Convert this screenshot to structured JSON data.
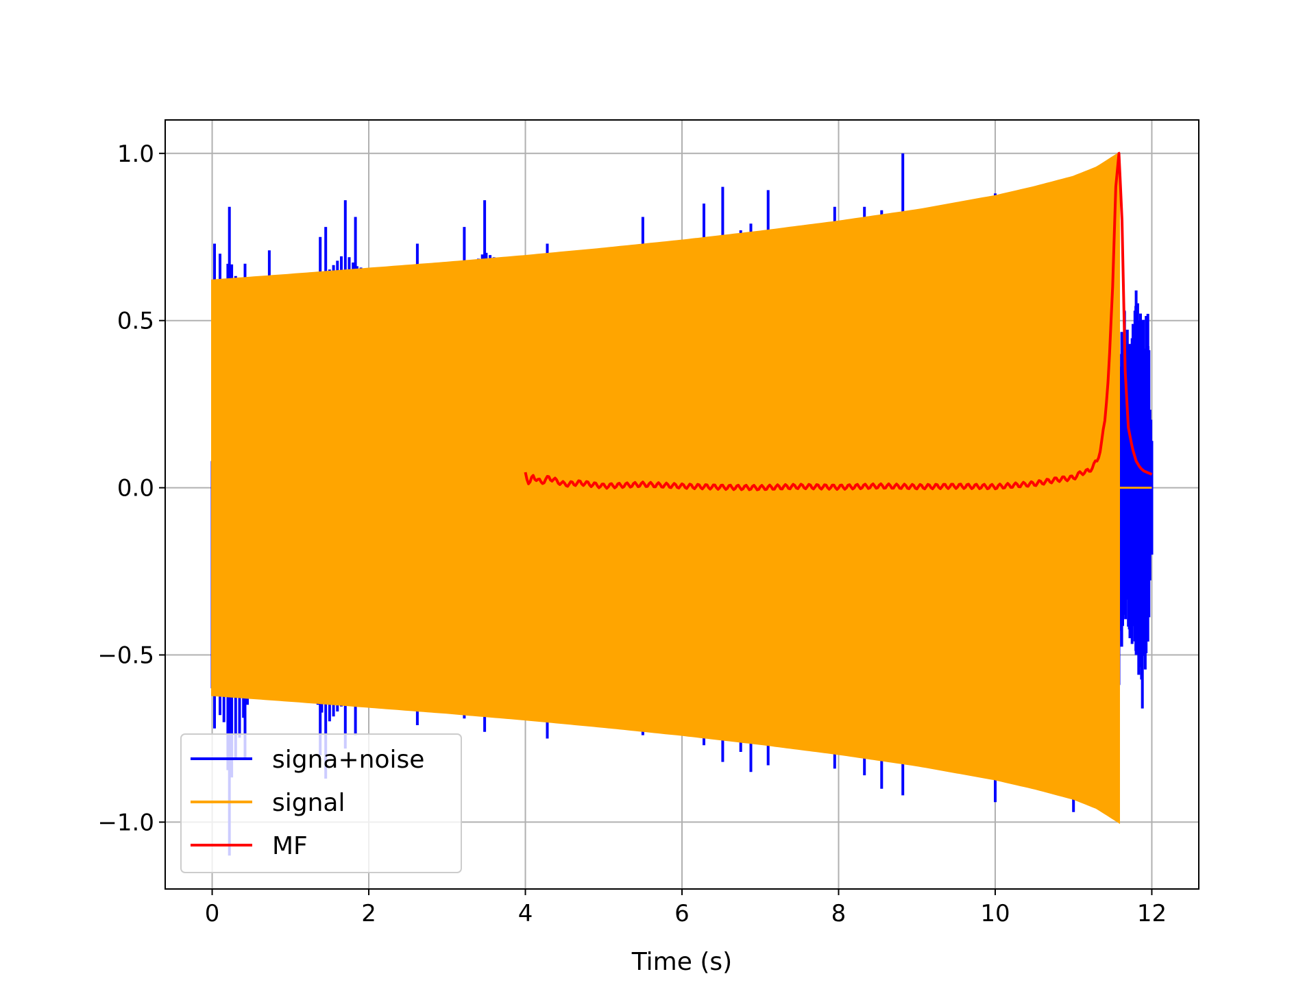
{
  "chart_data": {
    "type": "line",
    "title": "",
    "xlabel": "Time (s)",
    "ylabel": "",
    "xlim": [
      -0.6,
      12.6
    ],
    "ylim": [
      -1.2,
      1.1
    ],
    "xticks": [
      0,
      2,
      4,
      6,
      8,
      10,
      12
    ],
    "xtick_labels": [
      "0",
      "2",
      "4",
      "6",
      "8",
      "10",
      "12"
    ],
    "yticks": [
      -1.0,
      -0.5,
      0.0,
      0.5,
      1.0
    ],
    "ytick_labels": [
      "−1.0",
      "−0.5",
      "0.0",
      "0.5",
      "1.0"
    ],
    "grid": true,
    "legend_position": "lower-left",
    "series": [
      {
        "name": "signa+noise",
        "color": "#0000ff",
        "description_points": {
          "x": [
            0.0,
            0.03,
            0.1,
            0.22,
            0.42,
            0.73,
            1.38,
            1.45,
            1.7,
            1.83,
            2.62,
            3.22,
            3.48,
            4.28,
            4.8,
            5.5,
            6.28,
            6.52,
            6.75,
            6.88,
            7.1,
            7.95,
            8.33,
            8.55,
            8.82,
            10.0,
            11.0,
            11.58,
            11.65,
            11.72,
            11.8,
            11.88,
            11.95,
            12.0
          ],
          "y": [
            0.08,
            0.73,
            0.7,
            0.84,
            0.67,
            0.71,
            0.75,
            0.78,
            0.86,
            0.81,
            0.73,
            0.78,
            0.86,
            0.73,
            0.71,
            0.81,
            0.85,
            0.9,
            0.77,
            0.79,
            0.89,
            0.84,
            0.84,
            0.83,
            1.0,
            0.88,
            0.93,
            0.4,
            0.53,
            0.43,
            0.59,
            0.5,
            0.52,
            0.14
          ],
          "y_min": [
            -0.6,
            -0.72,
            -0.68,
            -1.1,
            -0.81,
            -0.62,
            -0.8,
            -0.87,
            -0.78,
            -0.74,
            -0.71,
            -0.69,
            -0.73,
            -0.75,
            -0.68,
            -0.74,
            -0.77,
            -0.82,
            -0.79,
            -0.85,
            -0.83,
            -0.84,
            -0.86,
            -0.9,
            -0.92,
            -0.94,
            -0.97,
            -0.59,
            -0.38,
            -0.45,
            -0.5,
            -0.66,
            -0.46,
            -0.2
          ]
        }
      },
      {
        "name": "signal",
        "color": "#ffa500",
        "envelope": {
          "t": [
            0.0,
            1.0,
            2.0,
            3.0,
            4.0,
            5.0,
            6.0,
            7.0,
            8.0,
            9.0,
            10.0,
            10.5,
            11.0,
            11.3,
            11.58
          ],
          "amp": [
            0.62,
            0.637,
            0.655,
            0.673,
            0.693,
            0.715,
            0.739,
            0.766,
            0.796,
            0.83,
            0.872,
            0.899,
            0.93,
            0.958,
            1.0
          ]
        },
        "end_time": 11.58,
        "after_value": 0.0,
        "after_end": 12.0
      },
      {
        "name": "MF",
        "color": "#ff0000",
        "x": [
          4.0,
          4.05,
          4.1,
          4.2,
          4.3,
          4.5,
          4.7,
          5.0,
          5.5,
          6.0,
          6.5,
          7.0,
          7.5,
          8.0,
          8.5,
          9.0,
          9.5,
          10.0,
          10.5,
          10.8,
          11.0,
          11.1,
          11.2,
          11.3,
          11.35,
          11.4,
          11.45,
          11.5,
          11.54,
          11.58,
          11.62,
          11.66,
          11.7,
          11.75,
          11.8,
          11.85,
          11.9,
          11.95,
          12.0
        ],
        "y": [
          0.045,
          0.01,
          0.035,
          0.015,
          0.03,
          0.01,
          0.015,
          0.005,
          0.01,
          0.005,
          0.002,
          0.0,
          0.004,
          0.002,
          0.005,
          0.003,
          0.005,
          0.003,
          0.012,
          0.025,
          0.03,
          0.045,
          0.05,
          0.08,
          0.12,
          0.2,
          0.35,
          0.6,
          0.9,
          1.0,
          0.8,
          0.35,
          0.18,
          0.12,
          0.08,
          0.06,
          0.05,
          0.045,
          0.04
        ]
      }
    ]
  }
}
